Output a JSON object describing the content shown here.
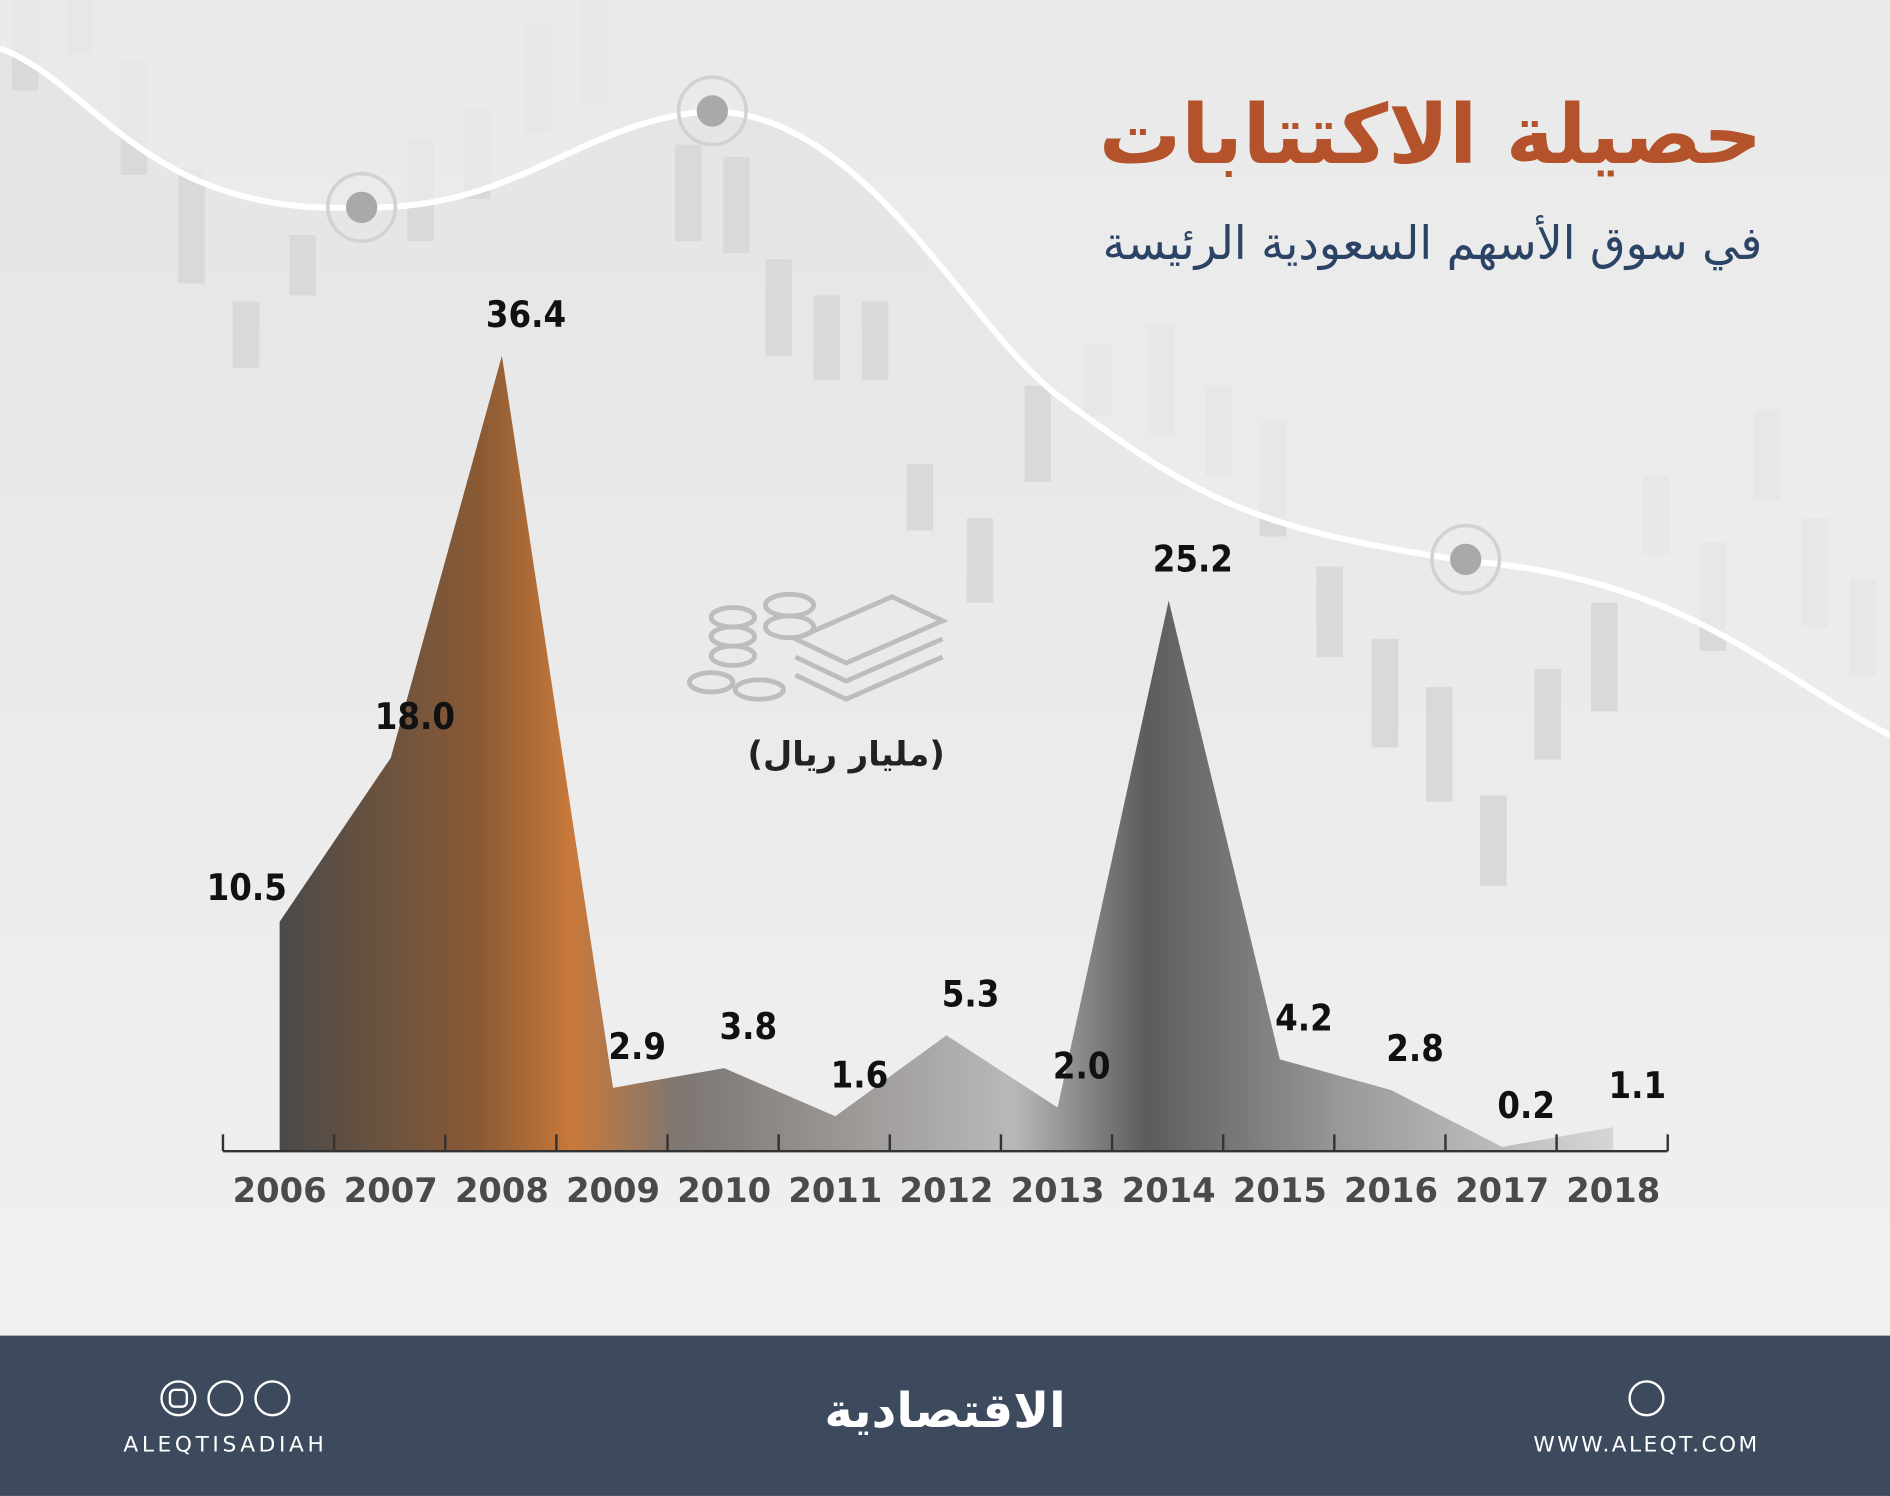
{
  "chart_data": {
    "type": "area",
    "title": "حصيلة الاكتتابات",
    "subtitle": "في سوق الأسهم السعودية الرئيسة",
    "unit_label": "(مليار ريال)",
    "categories": [
      "2006",
      "2007",
      "2008",
      "2009",
      "2010",
      "2011",
      "2012",
      "2013",
      "2014",
      "2015",
      "2016",
      "2017",
      "2018"
    ],
    "values": [
      10.5,
      18.0,
      36.4,
      2.9,
      3.8,
      1.6,
      5.3,
      2.0,
      25.2,
      4.2,
      2.8,
      0.2,
      1.1
    ],
    "value_labels": [
      "10.5",
      "18.0",
      "36.4",
      "2.9",
      "3.8",
      "1.6",
      "5.3",
      "2.0",
      "25.2",
      "4.2",
      "2.8",
      "0.2",
      "1.1"
    ],
    "color": "#7a6a5e"
  },
  "footer": {
    "logo": "الاقتصادية",
    "handle": "ALEQTISADIAH",
    "website": "WWW.ALEQT.COM"
  }
}
